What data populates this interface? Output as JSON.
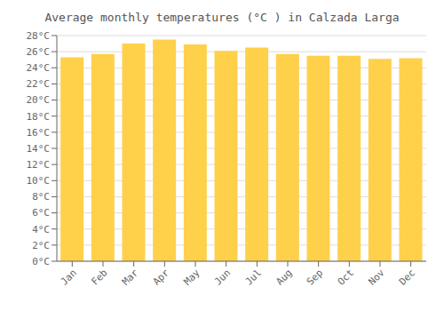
{
  "chart_data": {
    "type": "bar",
    "title": "Average monthly temperatures (°C ) in Calzada Larga",
    "categories": [
      "Jan",
      "Feb",
      "Mar",
      "Apr",
      "May",
      "Jun",
      "Jul",
      "Aug",
      "Sep",
      "Oct",
      "Nov",
      "Dec"
    ],
    "values": [
      25.3,
      25.7,
      27.0,
      27.5,
      26.9,
      26.1,
      26.5,
      25.7,
      25.5,
      25.5,
      25.1,
      25.2
    ],
    "color": "#FFD04A",
    "ylim": [
      0,
      28
    ],
    "yticks": [
      {
        "value": 0,
        "label": "0°C"
      },
      {
        "value": 2,
        "label": "2°C"
      },
      {
        "value": 4,
        "label": "4°C"
      },
      {
        "value": 6,
        "label": "6°C"
      },
      {
        "value": 8,
        "label": "8°C"
      },
      {
        "value": 10,
        "label": "10°C"
      },
      {
        "value": 12,
        "label": "12°C"
      },
      {
        "value": 14,
        "label": "14°C"
      },
      {
        "value": 16,
        "label": "16°C"
      },
      {
        "value": 18,
        "label": "18°C"
      },
      {
        "value": 20,
        "label": "20°C"
      },
      {
        "value": 22,
        "label": "22°C"
      },
      {
        "value": 24,
        "label": "24°C"
      },
      {
        "value": 26,
        "label": "26°C"
      },
      {
        "value": 28,
        "label": "28°C"
      }
    ],
    "grid": true
  }
}
